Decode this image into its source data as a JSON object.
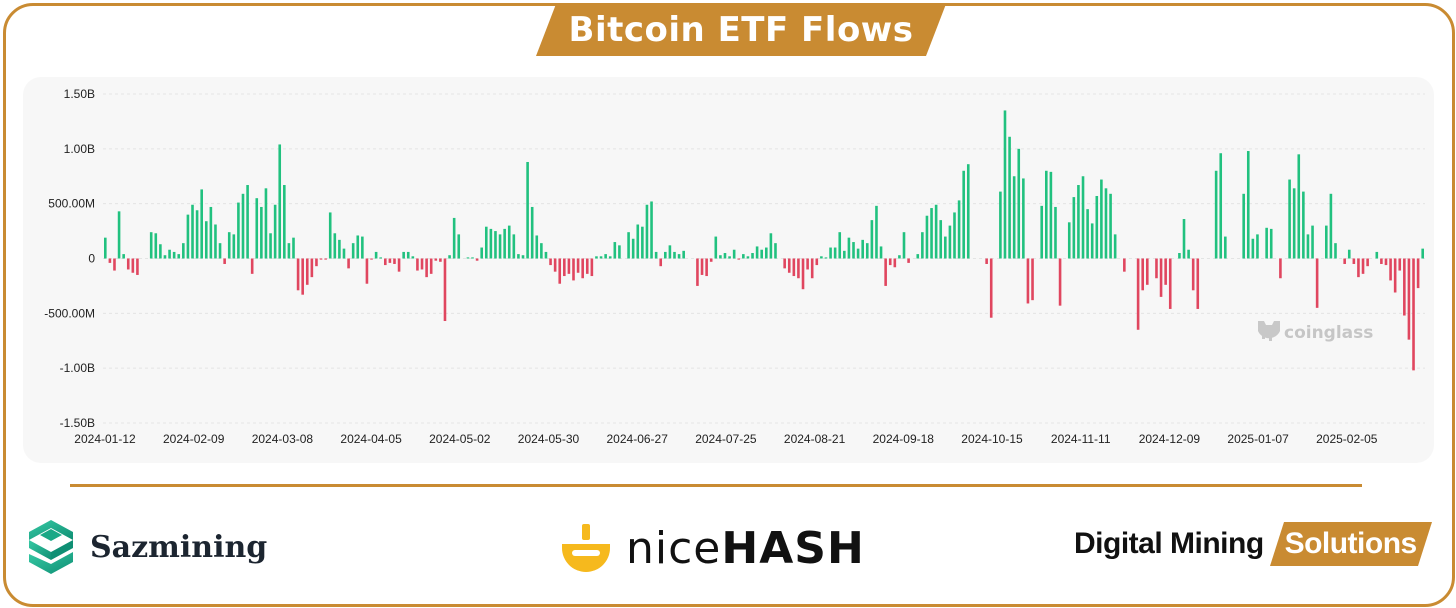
{
  "title": "Bitcoin ETF Flows",
  "colors": {
    "accent": "#c98b32",
    "positive": "#21c17f",
    "negative": "#e0465f",
    "panel": "#f7f7f7"
  },
  "watermark": "coinglass",
  "logos": {
    "sazmining": "Sazmining",
    "nicehash_nice": "nice",
    "nicehash_hash": "HASH",
    "dms_main": "Digital Mining",
    "dms_badge": "Solutions"
  },
  "chart_data": {
    "type": "bar",
    "title": "Bitcoin ETF Flows",
    "xlabel": "",
    "ylabel": "",
    "ylim": [
      -1500,
      1500
    ],
    "unit": "M USD",
    "y_tick_labels": [
      "1.50B",
      "1.00B",
      "500.00M",
      "0",
      "-500.00M",
      "-1.00B",
      "-1.50B"
    ],
    "x_tick_labels": [
      "2024-01-12",
      "2024-02-09",
      "2024-03-08",
      "2024-04-05",
      "2024-05-02",
      "2024-05-30",
      "2024-06-27",
      "2024-07-25",
      "2024-08-21",
      "2024-09-18",
      "2024-10-15",
      "2024-11-11",
      "2024-12-09",
      "2025-01-07",
      "2025-02-05"
    ],
    "grid": true,
    "legend": "none",
    "values": [
      190,
      -40,
      -110,
      430,
      40,
      -100,
      -130,
      -150,
      0,
      0,
      240,
      230,
      130,
      30,
      80,
      60,
      40,
      140,
      400,
      490,
      440,
      630,
      340,
      470,
      310,
      140,
      -50,
      240,
      220,
      510,
      590,
      670,
      -140,
      550,
      470,
      640,
      230,
      490,
      1040,
      670,
      140,
      190,
      -290,
      -330,
      -240,
      -170,
      -70,
      -10,
      -10,
      420,
      230,
      170,
      90,
      -90,
      140,
      210,
      200,
      -230,
      -10,
      60,
      10,
      -60,
      -40,
      -50,
      -120,
      60,
      60,
      20,
      -110,
      -100,
      -170,
      -140,
      -20,
      -30,
      -570,
      30,
      370,
      220,
      0,
      10,
      10,
      -20,
      100,
      290,
      270,
      250,
      220,
      270,
      300,
      220,
      40,
      30,
      880,
      470,
      210,
      140,
      60,
      -60,
      -120,
      -230,
      -160,
      -140,
      -200,
      -130,
      -180,
      -140,
      -160,
      20,
      20,
      40,
      20,
      150,
      120,
      0,
      240,
      180,
      310,
      290,
      490,
      520,
      60,
      -70,
      60,
      120,
      60,
      40,
      70,
      0,
      0,
      -250,
      -150,
      -160,
      -30,
      200,
      30,
      50,
      20,
      80,
      -10,
      40,
      20,
      50,
      110,
      80,
      100,
      230,
      140,
      0,
      -90,
      -130,
      -160,
      -180,
      -280,
      -100,
      -180,
      -60,
      20,
      10,
      100,
      100,
      240,
      70,
      190,
      150,
      90,
      170,
      140,
      350,
      480,
      110,
      -250,
      -60,
      -80,
      30,
      240,
      -40,
      0,
      40,
      240,
      390,
      460,
      490,
      350,
      200,
      300,
      420,
      530,
      800,
      860,
      0,
      0,
      0,
      -50,
      -540,
      0,
      610,
      1350,
      1110,
      750,
      1000,
      730,
      -410,
      -380,
      0,
      480,
      800,
      790,
      470,
      -430,
      0,
      330,
      560,
      670,
      750,
      450,
      320,
      570,
      720,
      640,
      590,
      220,
      0,
      -120,
      0,
      0,
      -650,
      -290,
      -240,
      0,
      -180,
      -350,
      -240,
      -460,
      0,
      50,
      360,
      80,
      -290,
      -460,
      0,
      0,
      0,
      800,
      960,
      200,
      0,
      0,
      0,
      590,
      980,
      180,
      220,
      0,
      280,
      270,
      0,
      -180,
      0,
      720,
      640,
      950,
      610,
      220,
      300,
      -450,
      0,
      300,
      590,
      140,
      0,
      -50,
      80,
      -50,
      -170,
      -140,
      -70,
      0,
      60,
      -50,
      -60,
      -200,
      -310,
      -110,
      -520,
      -740,
      -1020,
      -270,
      90
    ],
    "series_colors": {
      "positive": "#21c17f",
      "negative": "#e0465f"
    }
  }
}
